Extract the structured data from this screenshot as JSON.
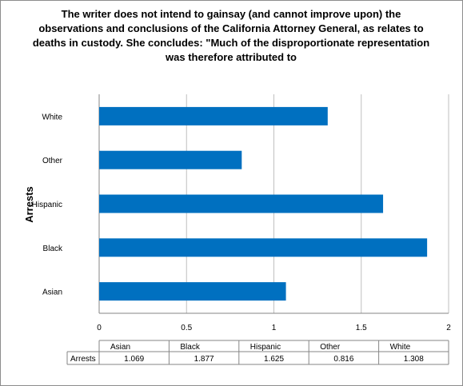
{
  "chart_data": {
    "type": "bar",
    "orientation": "horizontal",
    "title_lines": [
      "The writer does not intend to gainsay  (and cannot  improve upon) the",
      "observations  and conclusions  of the California  Attorney General, as relates to",
      "deaths in custody.  She concludes:  \"Much of the disproportionate  representation",
      "was therefore attributed to"
    ],
    "ylabel": "Arrests",
    "xlabel": "",
    "categories": [
      "Asian",
      "Black",
      "Hispanic",
      "Other",
      "White"
    ],
    "series": [
      {
        "name": "Arrests",
        "values": [
          1.069,
          1.877,
          1.625,
          0.816,
          1.308
        ],
        "color": "#0070C0"
      }
    ],
    "value_labels": [
      "1.069",
      "1.877",
      "1.625",
      "0.816",
      "1.308"
    ],
    "xlim": [
      0,
      2
    ],
    "xticks": [
      "0",
      "0.5",
      "1",
      "1.5",
      "2"
    ],
    "grid": true,
    "legend": "data table below chart"
  }
}
